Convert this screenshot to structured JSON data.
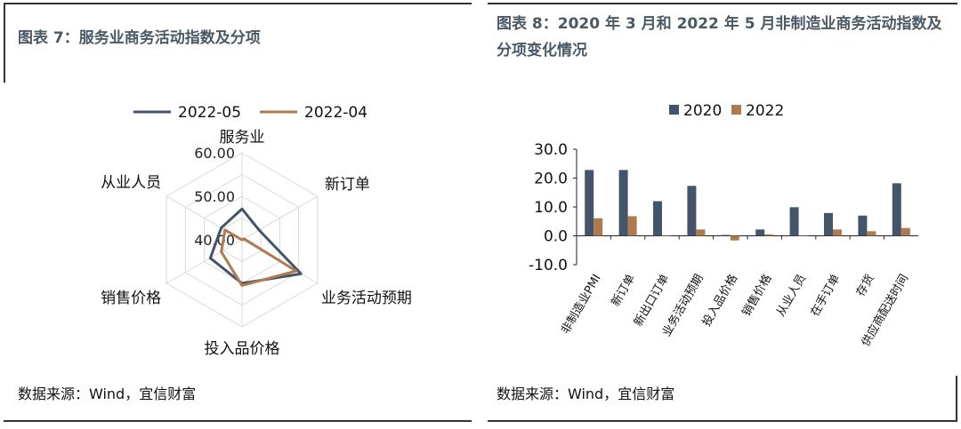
{
  "left_panel": {
    "title": "图表 7：服务业商务活动指数及分项",
    "source": "数据来源：Wind，宜信财富"
  },
  "right_panel": {
    "title": "图表 8：2020 年 3 月和 2022 年 5 月非制造业商务活动指数及分项变化情况",
    "source": "数据来源：Wind，宜信财富"
  },
  "chart_data": [
    {
      "type": "radar",
      "axes": [
        "服务业",
        "新订单",
        "业务活动预期",
        "投入品价格",
        "销售价格",
        "从业人员"
      ],
      "radial_ticks": [
        "40.00",
        "50.00",
        "60.00"
      ],
      "rlim": [
        40,
        60
      ],
      "legend_position": "top",
      "series": [
        {
          "name": "2022-05",
          "color": "#44546a",
          "values": [
            47.1,
            44.5,
            55.6,
            50.0,
            48.4,
            45.5
          ]
        },
        {
          "name": "2022-04",
          "color": "#b07a4f",
          "values": [
            40.0,
            40.5,
            54.3,
            50.5,
            45.5,
            44.5
          ]
        }
      ]
    },
    {
      "type": "bar",
      "categories": [
        "非制造业PMI",
        "新订单",
        "新出口订单",
        "业务活动预期",
        "投入品价格",
        "销售价格",
        "从业人员",
        "在手订单",
        "存货",
        "供应商配送时间"
      ],
      "ylim": [
        -10,
        30
      ],
      "yticks": [
        "30.0",
        "20.0",
        "10.0",
        "0.0",
        "-10.0"
      ],
      "legend_position": "top",
      "series": [
        {
          "name": "2020",
          "color": "#44546a",
          "values": [
            22.8,
            22.8,
            12.0,
            17.3,
            0.3,
            2.2,
            9.9,
            7.9,
            7.0,
            18.2
          ]
        },
        {
          "name": "2022",
          "color": "#b07a4f",
          "values": [
            6.1,
            6.8,
            0.0,
            2.2,
            -1.6,
            0.5,
            0.1,
            2.2,
            1.6,
            2.7
          ]
        }
      ]
    }
  ]
}
